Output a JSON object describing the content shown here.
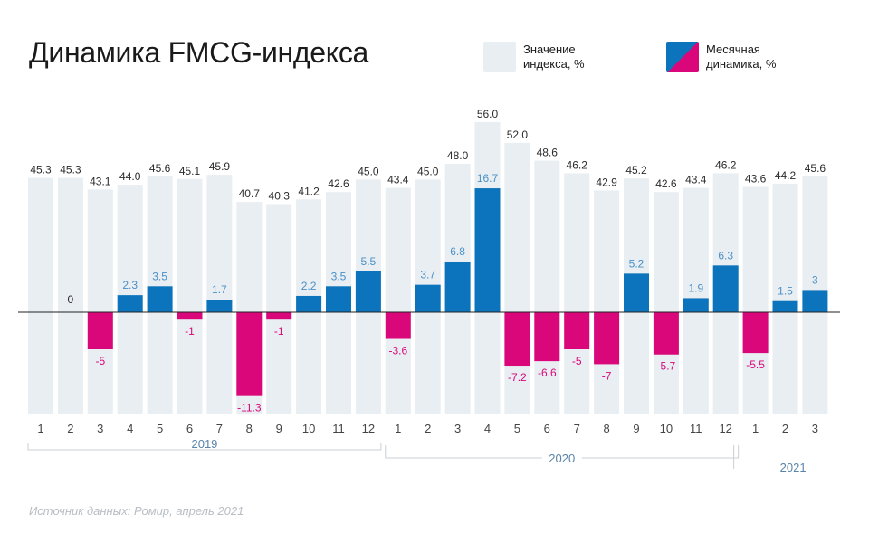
{
  "title": "Динамика FMCG-индекса",
  "legend": {
    "index_label": "Значение индекса, %",
    "monthly_label": "Месячная динамика, %"
  },
  "source": "Источник данных: Ромир, апрель 2021",
  "colors": {
    "index_bar": "#e8eef1",
    "positive": "#0b74bc",
    "negative": "#d9077a",
    "positive_label": "#4a90c8",
    "negative_label": "#d9077a",
    "index_label": "#2b2b2b",
    "axis_text": "#444444",
    "year_text": "#5a84a8"
  },
  "chart_data": {
    "type": "bar",
    "categories": [
      "1",
      "2",
      "3",
      "4",
      "5",
      "6",
      "7",
      "8",
      "9",
      "10",
      "11",
      "12",
      "1",
      "2",
      "3",
      "4",
      "5",
      "6",
      "7",
      "8",
      "9",
      "10",
      "11",
      "12",
      "1",
      "2",
      "3"
    ],
    "years": [
      {
        "label": "2019",
        "start": 0,
        "end": 11
      },
      {
        "label": "2020",
        "start": 12,
        "end": 23
      },
      {
        "label": "2021",
        "start": 24,
        "end": 26
      }
    ],
    "series": [
      {
        "name": "Значение индекса, %",
        "values": [
          45.3,
          45.3,
          43.1,
          44.0,
          45.6,
          45.1,
          45.9,
          40.7,
          40.3,
          41.2,
          42.6,
          45.0,
          43.4,
          45.0,
          48.0,
          56.0,
          52.0,
          48.6,
          46.2,
          42.9,
          45.2,
          42.6,
          43.4,
          46.2,
          43.6,
          44.2,
          45.6
        ],
        "labels": [
          "45.3",
          "45.3",
          "43.1",
          "44.0",
          "45.6",
          "45.1",
          "45.9",
          "40.7",
          "40.3",
          "41.2",
          "42.6",
          "45.0",
          "43.4",
          "45.0",
          "48.0",
          "56.0",
          "52.0",
          "48.6",
          "46.2",
          "42.9",
          "45.2",
          "42.6",
          "43.4",
          "46.2",
          "43.6",
          "44.2",
          "45.6"
        ]
      },
      {
        "name": "Месячная динамика, %",
        "values": [
          null,
          0,
          -5,
          2.3,
          3.5,
          -1,
          1.7,
          -11.3,
          -1,
          2.2,
          3.5,
          5.5,
          -3.6,
          3.7,
          6.8,
          16.7,
          -7.2,
          -6.6,
          -5,
          -7,
          5.2,
          -5.7,
          1.9,
          6.3,
          -5.5,
          1.5,
          3
        ],
        "labels": [
          "",
          "0",
          "-5",
          "2.3",
          "3.5",
          "-1",
          "1.7",
          "-11.3",
          "-1",
          "2.2",
          "3.5",
          "5.5",
          "-3.6",
          "3.7",
          "6.8",
          "16.7",
          "-7.2",
          "-6.6",
          "-5",
          "-7",
          "5.2",
          "-5.7",
          "1.9",
          "6.3",
          "-5.5",
          "1.5",
          "3"
        ]
      }
    ]
  }
}
